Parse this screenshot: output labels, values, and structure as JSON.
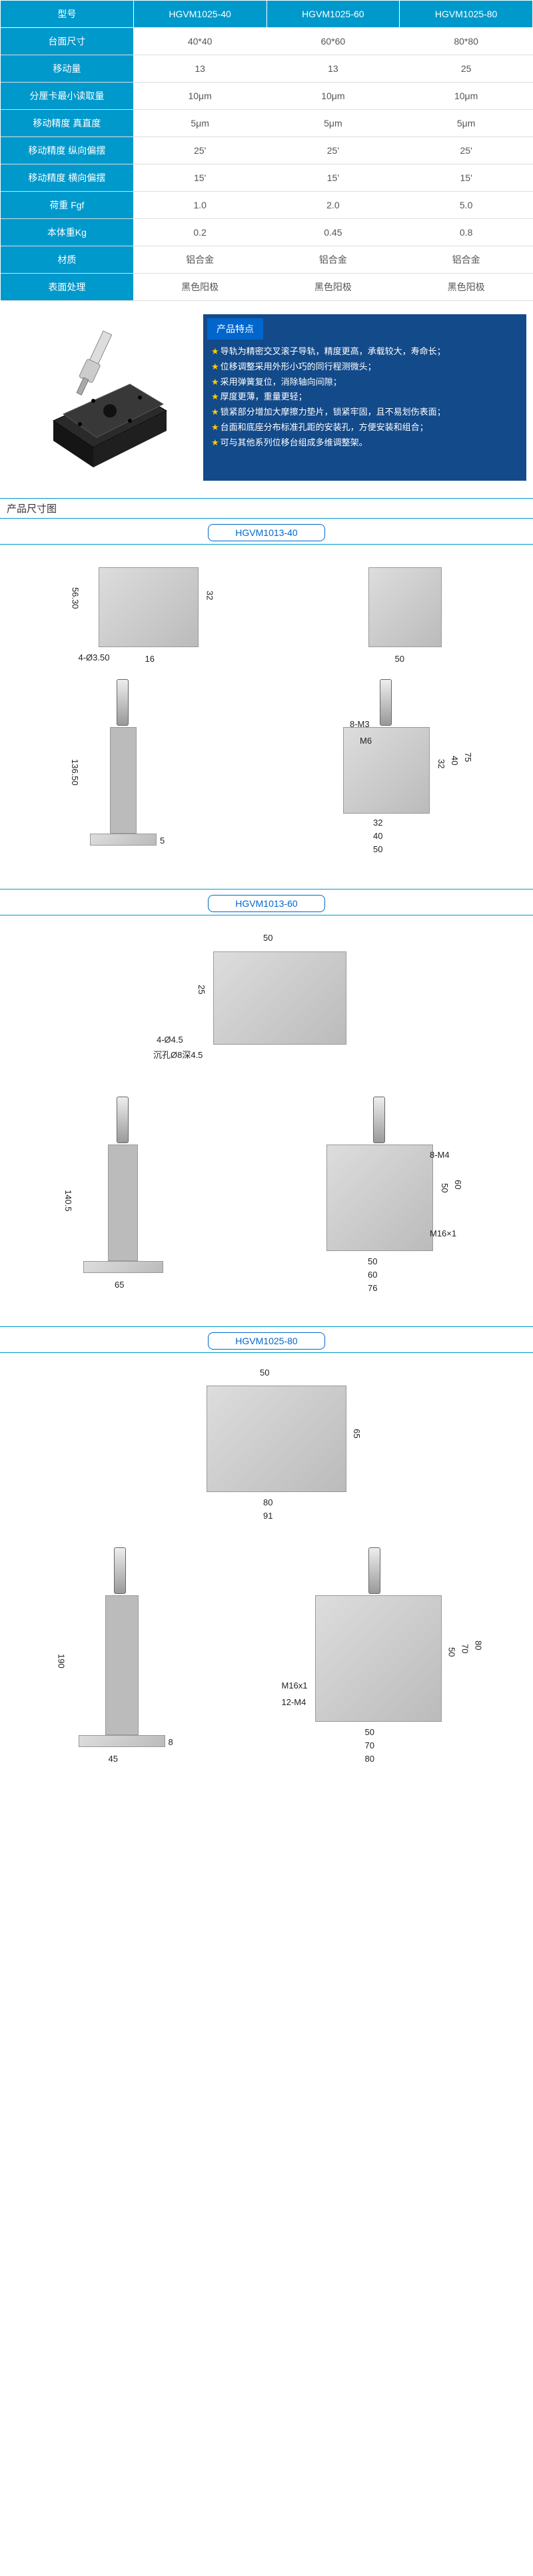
{
  "table": {
    "headers": [
      "型号",
      "HGVM1025-40",
      "HGVM1025-60",
      "HGVM1025-80"
    ],
    "rows": [
      {
        "label": "台面尺寸",
        "v": [
          "40*40",
          "60*60",
          "80*80"
        ]
      },
      {
        "label": "移动量",
        "v": [
          "13",
          "13",
          "25"
        ]
      },
      {
        "label": "分厘卡最小读取量",
        "v": [
          "10μm",
          "10μm",
          "10μm"
        ]
      },
      {
        "label": "移动精度 真直度",
        "v": [
          "5μm",
          "5μm",
          "5μm"
        ]
      },
      {
        "label": "移动精度 纵向偏摆",
        "v": [
          "25'",
          "25'",
          "25'"
        ]
      },
      {
        "label": "移动精度 横向偏摆",
        "v": [
          "15'",
          "15'",
          "15'"
        ]
      },
      {
        "label": "荷重 Fgf",
        "v": [
          "1.0",
          "2.0",
          "5.0"
        ]
      },
      {
        "label": "本体重Kg",
        "v": [
          "0.2",
          "0.45",
          "0.8"
        ]
      },
      {
        "label": "材质",
        "v": [
          "铝合金",
          "铝合金",
          "铝合金"
        ]
      },
      {
        "label": "表面处理",
        "v": [
          "黑色阳极",
          "黑色阳极",
          "黑色阳极"
        ]
      }
    ]
  },
  "features": {
    "title": "产品特点",
    "items": [
      "导轨为精密交叉滚子导轨，精度更高，承载较大，寿命长；",
      "位移调整采用外形小巧的同行程测微头；",
      "采用弹簧复位，消除轴向间隙；",
      "厚度更薄，重量更轻；",
      "锁紧部分增加大摩擦力垫片，锁紧牢固，且不易划伤表面；",
      "台面和底座分布标准孔距的安装孔，方便安装和组合；",
      "可与其他系列位移台组成多维调整架。"
    ]
  },
  "dimHeader": "产品尺寸图",
  "drawings": [
    {
      "title": "HGVM1013-40",
      "dims": {
        "d1": "56.30",
        "d2": "32",
        "d3": "4-Ø3.50",
        "d4": "16",
        "d5": "50",
        "d6": "136.50",
        "d7": "5",
        "d8": "8-M3",
        "d9": "M6",
        "d10": "32",
        "d11": "40",
        "d12": "75",
        "d13": "32",
        "d14": "40",
        "d15": "50"
      }
    },
    {
      "title": "HGVM1013-60",
      "dims": {
        "d1": "50",
        "d2": "25",
        "d3": "4-Ø4.5",
        "d4": "沉孔Ø8深4.5",
        "d5": "140.5",
        "d6": "65",
        "d7": "8-M4",
        "d8": "50",
        "d9": "60",
        "d10": "M16×1",
        "d11": "50",
        "d12": "60",
        "d13": "76"
      }
    },
    {
      "title": "HGVM1025-80",
      "dims": {
        "d1": "50",
        "d2": "65",
        "d3": "80",
        "d4": "91",
        "d5": "190",
        "d6": "45",
        "d7": "8",
        "d8": "M16x1",
        "d9": "12-M4",
        "d10": "50",
        "d11": "70",
        "d12": "80",
        "d13": "50",
        "d14": "70",
        "d15": "80"
      }
    }
  ]
}
